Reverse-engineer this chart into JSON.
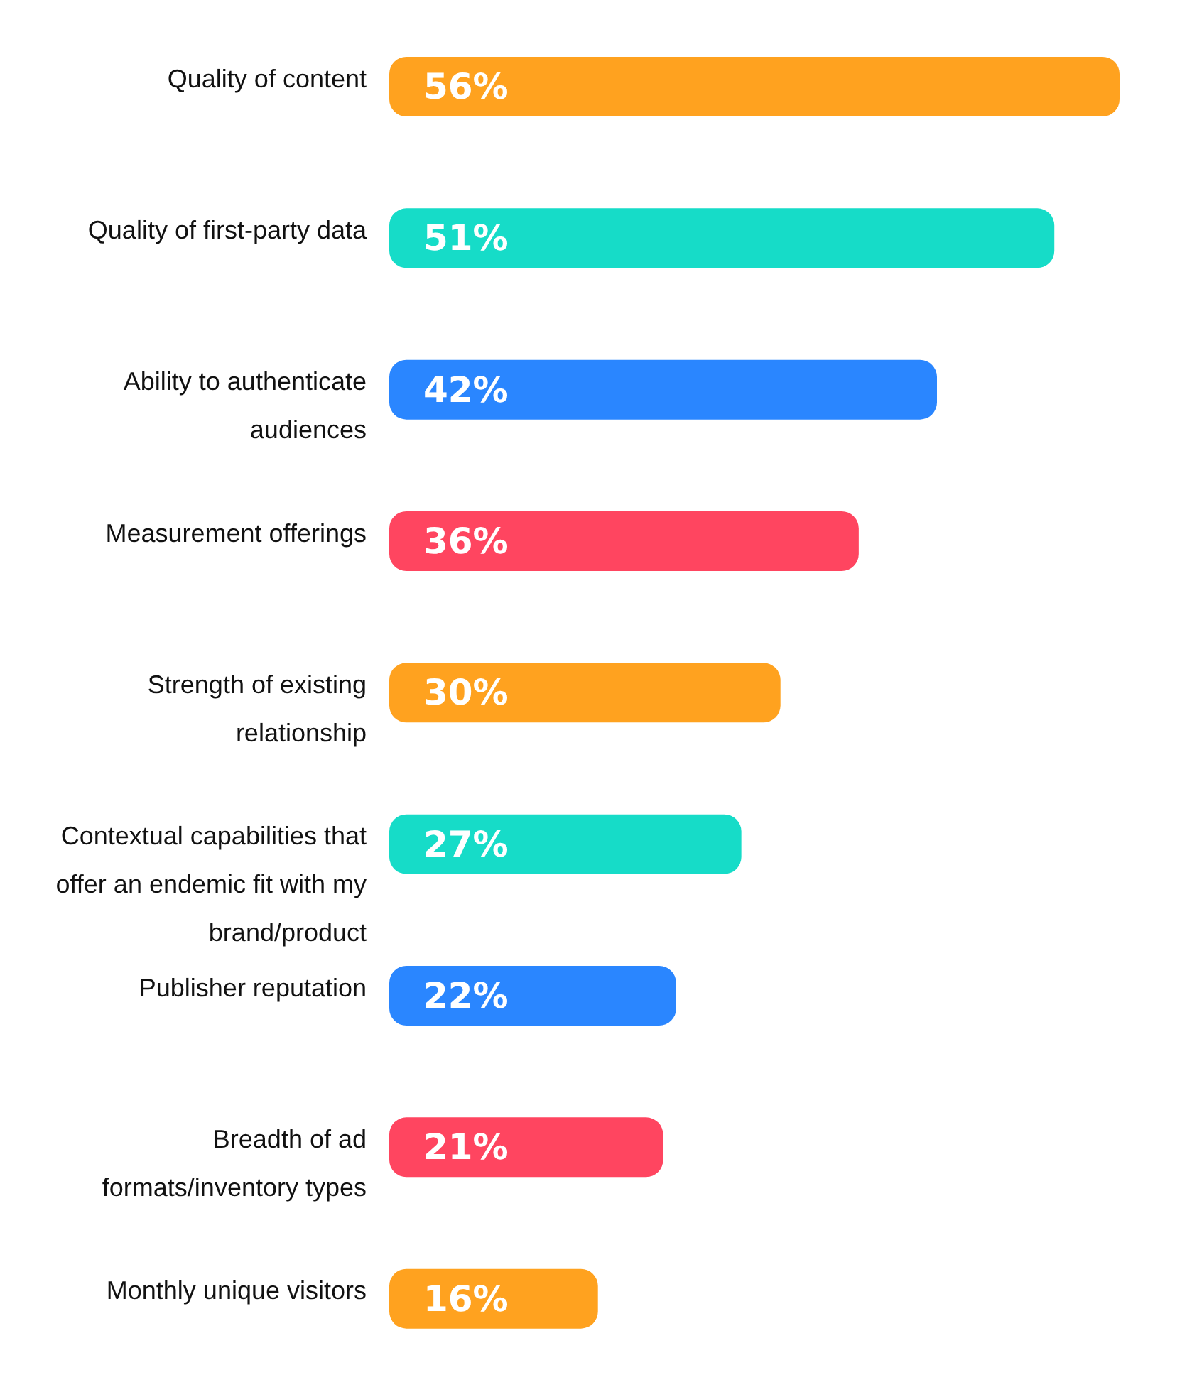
{
  "chart_data": {
    "type": "bar",
    "orientation": "horizontal",
    "categories": [
      "Quality of content",
      "Quality of first-party data",
      "Ability to authenticate audiences",
      "Measurement offerings",
      "Strength of existing relationship",
      "Contextual capabilities that offer an endemic fit with my brand/product",
      "Publisher reputation",
      "Breadth of ad formats/inventory types",
      "Monthly unique visitors"
    ],
    "values": [
      56,
      51,
      42,
      36,
      30,
      27,
      22,
      21,
      16
    ],
    "value_labels": [
      "56%",
      "51%",
      "42%",
      "36%",
      "30%",
      "27%",
      "22%",
      "21%",
      "16%"
    ],
    "colors": [
      "#ffa21f",
      "#16dcc8",
      "#2a86ff",
      "#ff4560",
      "#ffa21f",
      "#16dcc8",
      "#2a86ff",
      "#ff4560",
      "#ffa21f"
    ]
  }
}
